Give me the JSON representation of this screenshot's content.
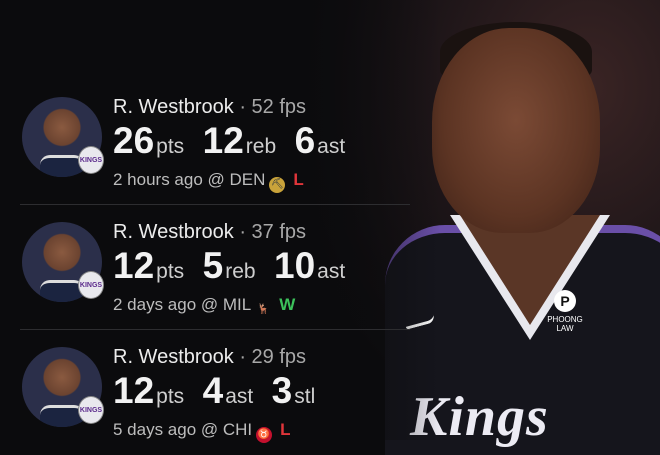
{
  "photo": {
    "jersey_text": "Kings",
    "sponsor": "PHOONG LAW",
    "sponsor_mark": "P"
  },
  "colors": {
    "loss": "#e0353a",
    "win": "#3cc25b",
    "kings_purple": "#5b2b8c"
  },
  "games": [
    {
      "player": "R. Westbrook",
      "fps": "· 52 fps",
      "stats": [
        {
          "v": "26",
          "u": "pts"
        },
        {
          "v": "12",
          "u": "reb"
        },
        {
          "v": "6",
          "u": "ast"
        }
      ],
      "when": "2 hours ago @ DEN",
      "team_icon": "nuggets-logo-icon",
      "result": "L",
      "badge": "KINGS"
    },
    {
      "player": "R. Westbrook",
      "fps": "· 37 fps",
      "stats": [
        {
          "v": "12",
          "u": "pts"
        },
        {
          "v": "5",
          "u": "reb"
        },
        {
          "v": "10",
          "u": "ast"
        }
      ],
      "when": "2 days ago @ MIL",
      "team_icon": "bucks-logo-icon",
      "result": "W",
      "badge": "KINGS"
    },
    {
      "player": "R. Westbrook",
      "fps": "· 29 fps",
      "stats": [
        {
          "v": "12",
          "u": "pts"
        },
        {
          "v": "4",
          "u": "ast"
        },
        {
          "v": "3",
          "u": "stl"
        }
      ],
      "when": "5 days ago @ CHI",
      "team_icon": "bulls-logo-icon",
      "result": "L",
      "badge": "KINGS"
    }
  ]
}
